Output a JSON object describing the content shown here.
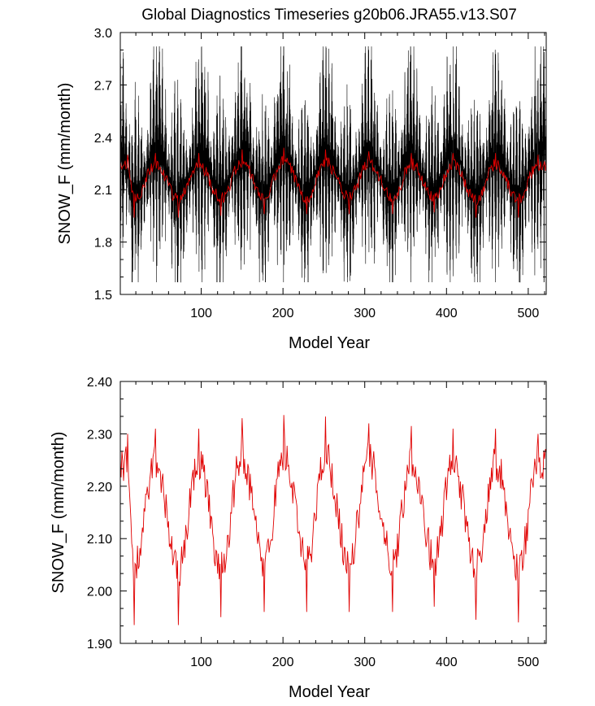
{
  "title": "Global Diagnostics Timeseries g20b06.JRA55.v13.S07",
  "chart_data": [
    {
      "type": "line",
      "xlabel": "Model Year",
      "ylabel": "SNOW_F (mm/month)",
      "xlim": [
        1,
        522
      ],
      "ylim": [
        1.5,
        3.0
      ],
      "xticks": [
        100,
        200,
        300,
        400,
        500
      ],
      "xtick_labels": [
        "100",
        "200",
        "300",
        "400",
        "500"
      ],
      "yticks": [
        1.5,
        1.8,
        2.1,
        2.4,
        2.7,
        3.0
      ],
      "ytick_labels": [
        "1.5",
        "1.8",
        "2.1",
        "2.4",
        "2.7",
        "3.0"
      ],
      "grid": false,
      "series": [
        {
          "color": "#000000",
          "sampling": "monthly",
          "cycle_years": 52,
          "x_start": 1,
          "x_end": 522,
          "envelope_band": [
            1.57,
            2.92
          ],
          "peaks": [
            [
              3,
              2.81
            ],
            [
              48,
              2.93
            ],
            [
              102,
              2.91
            ],
            [
              152,
              2.92
            ],
            [
              200,
              2.95
            ],
            [
              252,
              2.93
            ],
            [
              304,
              2.9
            ],
            [
              355,
              2.91
            ],
            [
              405,
              2.92
            ],
            [
              460,
              2.91
            ],
            [
              510,
              2.8
            ],
            [
              521,
              2.93
            ]
          ],
          "troughs": [
            [
              18,
              1.57
            ],
            [
              70,
              1.58
            ],
            [
              122,
              1.57
            ],
            [
              175,
              1.6
            ],
            [
              228,
              1.63
            ],
            [
              280,
              1.62
            ],
            [
              333,
              1.59
            ],
            [
              384,
              1.6
            ],
            [
              437,
              1.58
            ],
            [
              488,
              1.58
            ]
          ]
        },
        {
          "color": "#e00000",
          "sampling": "annual",
          "cycle_years": 52,
          "x_start": 1,
          "x_end": 522,
          "range": [
            1.94,
            2.34
          ],
          "peaks": [
            [
              10,
              2.3
            ],
            [
              44,
              2.31
            ],
            [
              97,
              2.31
            ],
            [
              150,
              2.33
            ],
            [
              201,
              2.34
            ],
            [
              252,
              2.33
            ],
            [
              305,
              2.32
            ],
            [
              357,
              2.31
            ],
            [
              408,
              2.31
            ],
            [
              460,
              2.31
            ],
            [
              512,
              2.3
            ]
          ],
          "troughs": [
            [
              18,
              1.94
            ],
            [
              72,
              1.94
            ],
            [
              124,
              1.95
            ],
            [
              177,
              1.96
            ],
            [
              229,
              1.96
            ],
            [
              281,
              1.96
            ],
            [
              334,
              1.96
            ],
            [
              385,
              1.97
            ],
            [
              436,
              1.94
            ],
            [
              488,
              1.94
            ]
          ]
        }
      ]
    },
    {
      "type": "line",
      "xlabel": "Model Year",
      "ylabel": "SNOW_F (mm/month)",
      "xlim": [
        1,
        522
      ],
      "ylim": [
        1.9,
        2.4
      ],
      "xticks": [
        100,
        200,
        300,
        400,
        500
      ],
      "xtick_labels": [
        "100",
        "200",
        "300",
        "400",
        "500"
      ],
      "yticks": [
        1.9,
        2.0,
        2.1,
        2.2,
        2.3,
        2.4
      ],
      "ytick_labels": [
        "1.90",
        "2.00",
        "2.10",
        "2.20",
        "2.30",
        "2.40"
      ],
      "grid": false,
      "series": [
        {
          "color": "#e00000",
          "sampling": "annual",
          "cycle_years": 52,
          "x_start": 1,
          "x_end": 522,
          "range": [
            1.935,
            2.336
          ],
          "peaks": [
            [
              10,
              2.3
            ],
            [
              44,
              2.31
            ],
            [
              97,
              2.31
            ],
            [
              150,
              2.33
            ],
            [
              201,
              2.336
            ],
            [
              252,
              2.333
            ],
            [
              305,
              2.32
            ],
            [
              357,
              2.315
            ],
            [
              408,
              2.31
            ],
            [
              460,
              2.31
            ],
            [
              512,
              2.3
            ]
          ],
          "troughs": [
            [
              18,
              1.935
            ],
            [
              72,
              1.935
            ],
            [
              124,
              1.95
            ],
            [
              177,
              1.96
            ],
            [
              229,
              1.96
            ],
            [
              281,
              1.96
            ],
            [
              334,
              1.96
            ],
            [
              385,
              1.97
            ],
            [
              436,
              1.945
            ],
            [
              488,
              1.94
            ]
          ]
        }
      ]
    }
  ]
}
